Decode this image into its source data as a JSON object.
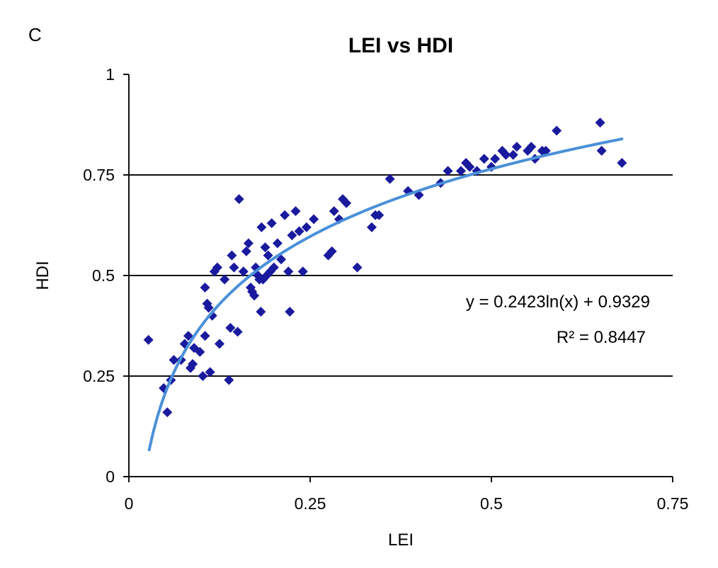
{
  "panel_label": "C",
  "chart_data": {
    "type": "scatter",
    "title": "LEI vs HDI",
    "xlabel": "LEI",
    "ylabel": "HDI",
    "xlim": [
      0,
      0.75
    ],
    "ylim": [
      0,
      1
    ],
    "x_ticks": [
      "0",
      "0.25",
      "0.5",
      "0.75"
    ],
    "y_ticks": [
      "0",
      "0.25",
      "0.5",
      "0.75",
      "1"
    ],
    "grid": "horizontal",
    "marker_color": "#1a1a9e",
    "trend_color": "#4a90d9",
    "trendline": {
      "equation": "y = 0.2423ln(x) + 0.9329",
      "r_squared": "R² = 0.8447",
      "a": 0.2423,
      "b": 0.9329,
      "x_range": [
        0.028,
        0.68
      ]
    },
    "points": [
      [
        0.027,
        0.34
      ],
      [
        0.048,
        0.22
      ],
      [
        0.053,
        0.16
      ],
      [
        0.058,
        0.24
      ],
      [
        0.062,
        0.29
      ],
      [
        0.072,
        0.29
      ],
      [
        0.077,
        0.33
      ],
      [
        0.082,
        0.35
      ],
      [
        0.085,
        0.27
      ],
      [
        0.088,
        0.28
      ],
      [
        0.09,
        0.32
      ],
      [
        0.098,
        0.31
      ],
      [
        0.102,
        0.25
      ],
      [
        0.105,
        0.35
      ],
      [
        0.105,
        0.47
      ],
      [
        0.108,
        0.43
      ],
      [
        0.11,
        0.42
      ],
      [
        0.112,
        0.26
      ],
      [
        0.115,
        0.4
      ],
      [
        0.118,
        0.51
      ],
      [
        0.122,
        0.52
      ],
      [
        0.125,
        0.33
      ],
      [
        0.132,
        0.49
      ],
      [
        0.138,
        0.24
      ],
      [
        0.14,
        0.37
      ],
      [
        0.142,
        0.55
      ],
      [
        0.145,
        0.52
      ],
      [
        0.15,
        0.36
      ],
      [
        0.152,
        0.69
      ],
      [
        0.158,
        0.51
      ],
      [
        0.162,
        0.56
      ],
      [
        0.165,
        0.58
      ],
      [
        0.168,
        0.47
      ],
      [
        0.17,
        0.46
      ],
      [
        0.173,
        0.45
      ],
      [
        0.175,
        0.52
      ],
      [
        0.178,
        0.5
      ],
      [
        0.18,
        0.49
      ],
      [
        0.182,
        0.41
      ],
      [
        0.183,
        0.62
      ],
      [
        0.185,
        0.49
      ],
      [
        0.188,
        0.57
      ],
      [
        0.19,
        0.5
      ],
      [
        0.192,
        0.55
      ],
      [
        0.195,
        0.51
      ],
      [
        0.197,
        0.63
      ],
      [
        0.2,
        0.52
      ],
      [
        0.205,
        0.58
      ],
      [
        0.21,
        0.54
      ],
      [
        0.215,
        0.65
      ],
      [
        0.22,
        0.51
      ],
      [
        0.222,
        0.41
      ],
      [
        0.225,
        0.6
      ],
      [
        0.23,
        0.66
      ],
      [
        0.235,
        0.61
      ],
      [
        0.24,
        0.51
      ],
      [
        0.245,
        0.62
      ],
      [
        0.255,
        0.64
      ],
      [
        0.275,
        0.55
      ],
      [
        0.28,
        0.56
      ],
      [
        0.283,
        0.66
      ],
      [
        0.29,
        0.64
      ],
      [
        0.295,
        0.69
      ],
      [
        0.3,
        0.68
      ],
      [
        0.315,
        0.52
      ],
      [
        0.335,
        0.62
      ],
      [
        0.34,
        0.65
      ],
      [
        0.345,
        0.65
      ],
      [
        0.36,
        0.74
      ],
      [
        0.385,
        0.71
      ],
      [
        0.4,
        0.7
      ],
      [
        0.43,
        0.73
      ],
      [
        0.44,
        0.76
      ],
      [
        0.458,
        0.76
      ],
      [
        0.465,
        0.78
      ],
      [
        0.47,
        0.77
      ],
      [
        0.48,
        0.76
      ],
      [
        0.49,
        0.79
      ],
      [
        0.5,
        0.77
      ],
      [
        0.505,
        0.79
      ],
      [
        0.515,
        0.81
      ],
      [
        0.52,
        0.8
      ],
      [
        0.53,
        0.8
      ],
      [
        0.535,
        0.82
      ],
      [
        0.55,
        0.81
      ],
      [
        0.555,
        0.82
      ],
      [
        0.56,
        0.79
      ],
      [
        0.57,
        0.81
      ],
      [
        0.575,
        0.81
      ],
      [
        0.59,
        0.86
      ],
      [
        0.65,
        0.88
      ],
      [
        0.652,
        0.81
      ],
      [
        0.68,
        0.78
      ]
    ]
  }
}
